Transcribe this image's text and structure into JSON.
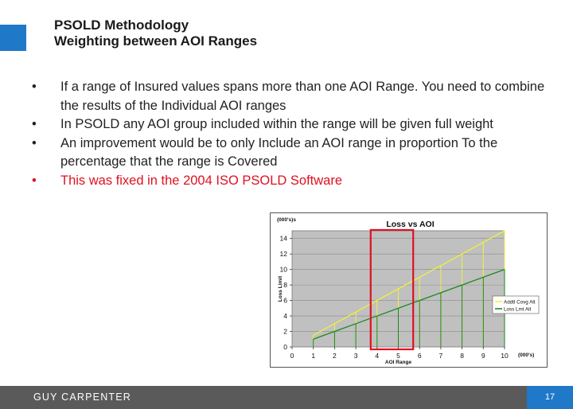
{
  "slide": {
    "title_line1": "PSOLD Methodology",
    "title_line2": "Weighting between AOI Ranges",
    "bullets": [
      "If a range of Insured values spans more than one AOI Range.  You need to combine the results of the Individual AOI ranges",
      "In PSOLD any AOI group included within the range will be given full weight",
      "An improvement would be to only Include an AOI range in proportion To the percentage that the range is Covered"
    ],
    "highlight_bullet": "This was fixed in the 2004 ISO PSOLD Software",
    "bullet_marker": "•",
    "accent_color": "#1f78c8",
    "highlight_color": "#e01020"
  },
  "footer": {
    "brand": "GUY CARPENTER",
    "page_number": "17"
  },
  "chart_data": {
    "type": "line",
    "title": "Loss  vs AOI",
    "xlabel": "AOI Range",
    "ylabel": "Loss Limit",
    "x_units_note": "(000's)",
    "y_units_note": "(000's)s",
    "x": [
      1,
      2,
      3,
      4,
      5,
      6,
      7,
      8,
      9,
      10
    ],
    "xlim": [
      0,
      10
    ],
    "ylim": [
      0,
      15
    ],
    "x_ticks": [
      0,
      1,
      2,
      3,
      4,
      5,
      6,
      7,
      8,
      9,
      10
    ],
    "y_ticks": [
      0,
      2,
      4,
      6,
      8,
      10,
      12,
      14
    ],
    "grid": true,
    "plot_background": "#c0c0c0",
    "legend_position": "right",
    "series": [
      {
        "name": "Addtl Covg Alt",
        "color": "#f0f040",
        "values": [
          1.5,
          3,
          4.5,
          6,
          7.5,
          9,
          10.5,
          12,
          13.5,
          15
        ]
      },
      {
        "name": "Loss Lmt Alt",
        "color": "#1a8a1a",
        "values": [
          1,
          2,
          3,
          4,
          5,
          6,
          7,
          8,
          9,
          10
        ]
      }
    ],
    "highlight_range": {
      "x_from": 3.7,
      "x_to": 5.7,
      "color": "#e01020"
    }
  }
}
